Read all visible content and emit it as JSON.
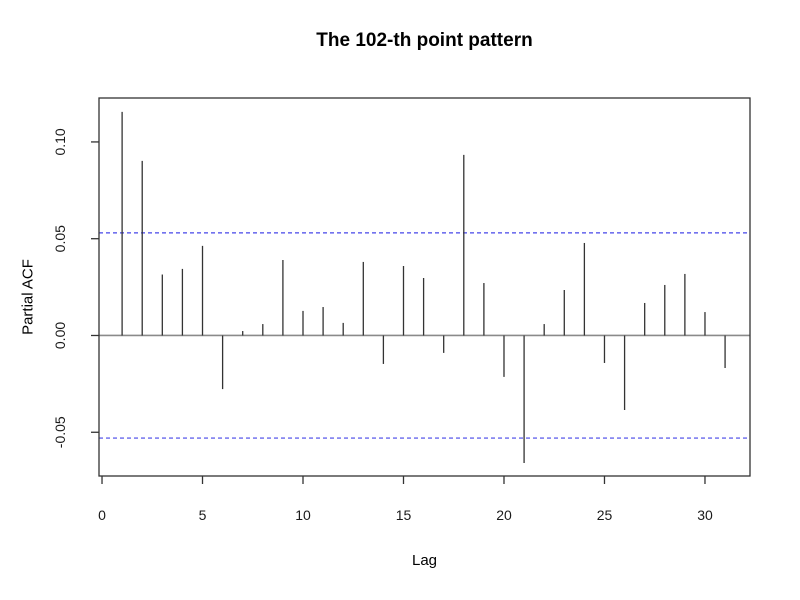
{
  "chart_data": {
    "type": "stem",
    "title": "The 102-th point pattern",
    "xlabel": "Lag",
    "ylabel": "Partial ACF",
    "x": [
      1,
      2,
      3,
      4,
      5,
      6,
      7,
      8,
      9,
      10,
      11,
      12,
      13,
      14,
      15,
      16,
      17,
      18,
      19,
      20,
      21,
      22,
      23,
      24,
      25,
      26,
      27,
      28,
      29,
      30,
      31
    ],
    "values": [
      0.1155,
      0.0902,
      0.0315,
      0.0344,
      0.0463,
      -0.0277,
      0.0023,
      0.0059,
      0.039,
      0.0127,
      0.0147,
      0.0065,
      0.038,
      -0.0147,
      0.0359,
      0.0297,
      -0.009,
      0.0933,
      0.0271,
      -0.0214,
      -0.0659,
      0.0059,
      0.0235,
      0.0478,
      -0.0142,
      -0.0385,
      0.0168,
      0.0261,
      0.0318,
      0.0121,
      -0.0168
    ],
    "x_ticks": [
      0,
      5,
      10,
      15,
      20,
      25,
      30
    ],
    "y_ticks": [
      {
        "value": -0.05,
        "label": "-0.05"
      },
      {
        "value": 0.0,
        "label": "0.00"
      },
      {
        "value": 0.05,
        "label": "0.05"
      },
      {
        "value": 0.1,
        "label": "0.10"
      }
    ],
    "xlim": [
      -0.15,
      32.24
    ],
    "ylim": [
      -0.0726,
      0.1227
    ],
    "conf_bounds": {
      "upper": 0.053,
      "lower": -0.053,
      "style": "dashed"
    },
    "zero_line": true,
    "grid": false,
    "legend": null,
    "colors": {
      "spike": "#333333",
      "zero_line": "#8a8a8a",
      "conf_line": "#4545e8",
      "frame": "#333333",
      "text": "#1a1a1a",
      "background": "#ffffff"
    }
  }
}
